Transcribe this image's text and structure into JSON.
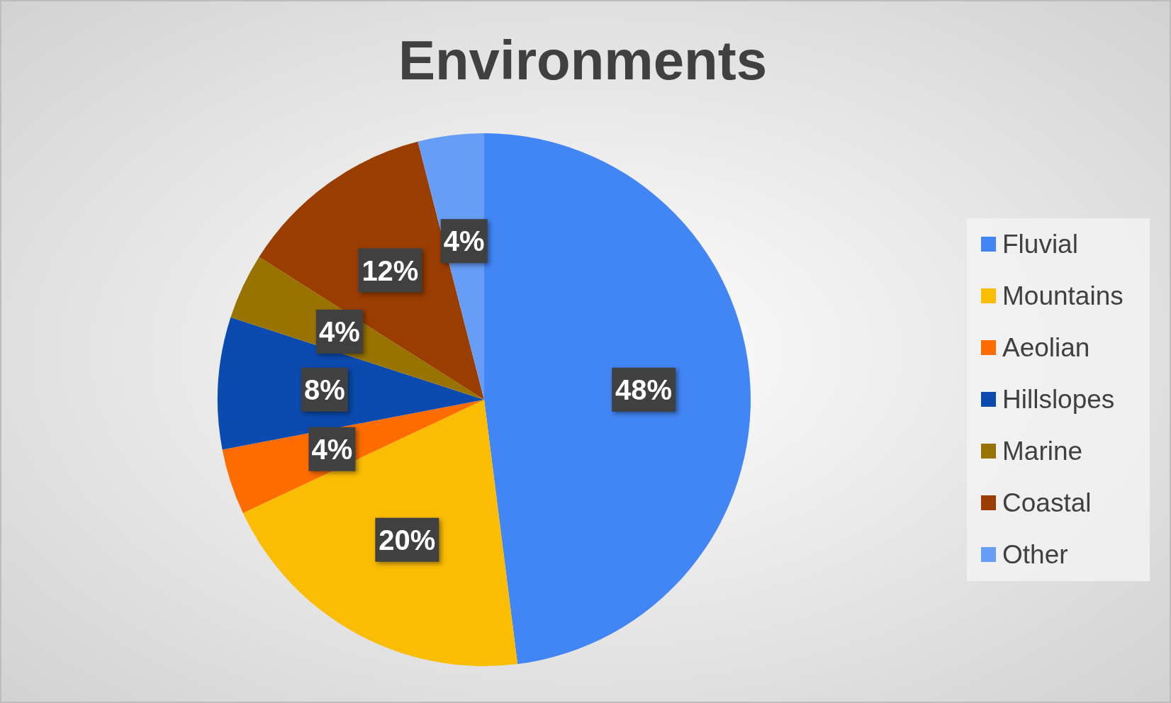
{
  "chart_data": {
    "type": "pie",
    "title": "Environments",
    "categories": [
      "Fluvial",
      "Mountains",
      "Aeolian",
      "Hillslopes",
      "Marine",
      "Coastal",
      "Other"
    ],
    "values": [
      48,
      20,
      4,
      8,
      4,
      12,
      4
    ],
    "colors": [
      "#4285f4",
      "#fbbc04",
      "#ff6d01",
      "#0b4aae",
      "#997300",
      "#9a3d00",
      "#669df6"
    ],
    "value_labels": [
      "48%",
      "20%",
      "4%",
      "8%",
      "4%",
      "12%",
      "4%"
    ],
    "legend": "right"
  }
}
